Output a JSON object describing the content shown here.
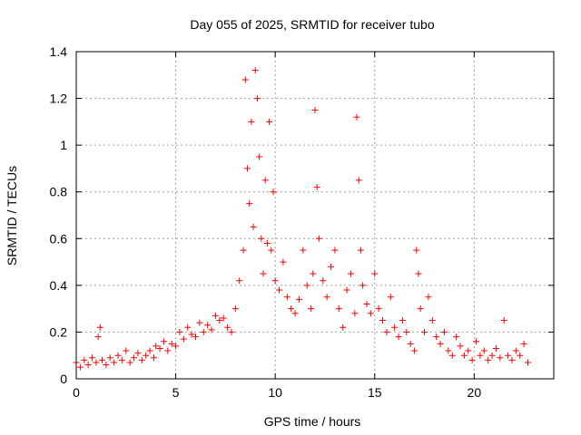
{
  "chart_data": {
    "type": "scatter",
    "title": "Day 055 of 2025, SRMTID for receiver tubo",
    "xlabel": "GPS time / hours",
    "ylabel": "SRMTID / TECUs",
    "xlim": [
      0,
      24
    ],
    "ylim": [
      0,
      1.4
    ],
    "xticks": [
      0,
      5,
      10,
      15,
      20
    ],
    "xtick_labels": [
      "0",
      "5",
      "10",
      "15",
      "20"
    ],
    "yticks": [
      0,
      0.2,
      0.4,
      0.6,
      0.8,
      1,
      1.2,
      1.4
    ],
    "ytick_labels": [
      "0",
      "0.2",
      "0.4",
      "0.6",
      "0.8",
      "1",
      "1.2",
      "1.4"
    ],
    "grid": true,
    "marker": "plus",
    "series": [
      {
        "name": "SRMTID",
        "color": "#ff0000",
        "x": [
          0.0,
          0.2,
          0.4,
          0.6,
          0.8,
          1.0,
          1.1,
          1.2,
          1.3,
          1.5,
          1.7,
          1.9,
          2.1,
          2.3,
          2.5,
          2.7,
          2.9,
          3.1,
          3.3,
          3.5,
          3.7,
          3.9,
          4.0,
          4.2,
          4.4,
          4.6,
          4.8,
          5.0,
          5.2,
          5.4,
          5.6,
          5.8,
          6.0,
          6.2,
          6.4,
          6.6,
          6.8,
          7.0,
          7.2,
          7.4,
          7.6,
          7.8,
          8.0,
          8.2,
          8.4,
          8.5,
          8.6,
          8.7,
          8.8,
          8.9,
          9.0,
          9.1,
          9.2,
          9.3,
          9.4,
          9.5,
          9.6,
          9.7,
          9.8,
          9.9,
          10.0,
          10.2,
          10.4,
          10.6,
          10.8,
          11.0,
          11.2,
          11.4,
          11.6,
          11.8,
          11.9,
          12.0,
          12.1,
          12.2,
          12.4,
          12.6,
          12.8,
          13.0,
          13.2,
          13.4,
          13.6,
          13.8,
          14.0,
          14.1,
          14.2,
          14.3,
          14.4,
          14.6,
          14.8,
          15.0,
          15.2,
          15.4,
          15.6,
          15.8,
          16.0,
          16.2,
          16.4,
          16.6,
          16.8,
          17.0,
          17.1,
          17.2,
          17.3,
          17.5,
          17.7,
          17.9,
          18.1,
          18.3,
          18.5,
          18.7,
          18.9,
          19.1,
          19.3,
          19.5,
          19.7,
          19.9,
          20.1,
          20.3,
          20.5,
          20.7,
          20.9,
          21.1,
          21.3,
          21.5,
          21.7,
          21.9,
          22.1,
          22.3,
          22.5,
          22.7
        ],
        "y": [
          0.07,
          0.05,
          0.08,
          0.06,
          0.09,
          0.07,
          0.18,
          0.22,
          0.08,
          0.06,
          0.09,
          0.07,
          0.1,
          0.08,
          0.12,
          0.07,
          0.09,
          0.11,
          0.08,
          0.1,
          0.12,
          0.09,
          0.14,
          0.13,
          0.16,
          0.12,
          0.15,
          0.14,
          0.2,
          0.17,
          0.22,
          0.19,
          0.18,
          0.24,
          0.2,
          0.23,
          0.21,
          0.27,
          0.25,
          0.26,
          0.22,
          0.2,
          0.3,
          0.42,
          0.55,
          1.28,
          0.9,
          0.75,
          1.1,
          0.65,
          1.32,
          1.2,
          0.95,
          0.6,
          0.45,
          0.85,
          0.58,
          1.1,
          0.55,
          0.8,
          0.42,
          0.38,
          0.5,
          0.35,
          0.3,
          0.28,
          0.34,
          0.55,
          0.4,
          0.3,
          0.45,
          1.15,
          0.82,
          0.6,
          0.42,
          0.35,
          0.48,
          0.55,
          0.3,
          0.22,
          0.38,
          0.45,
          0.28,
          1.12,
          0.85,
          0.55,
          0.4,
          0.32,
          0.28,
          0.45,
          0.3,
          0.25,
          0.2,
          0.35,
          0.22,
          0.18,
          0.25,
          0.2,
          0.15,
          0.12,
          0.55,
          0.45,
          0.3,
          0.2,
          0.35,
          0.25,
          0.18,
          0.15,
          0.2,
          0.12,
          0.1,
          0.18,
          0.14,
          0.1,
          0.12,
          0.08,
          0.16,
          0.1,
          0.12,
          0.08,
          0.1,
          0.13,
          0.09,
          0.25,
          0.1,
          0.08,
          0.12,
          0.1,
          0.15,
          0.07
        ]
      }
    ]
  }
}
